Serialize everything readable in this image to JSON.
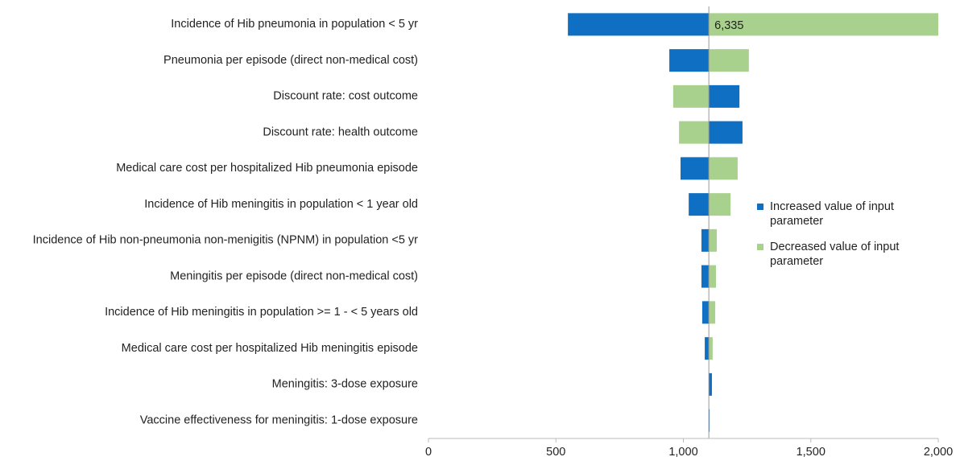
{
  "chart_data": {
    "type": "tornado",
    "categories": [
      "Incidence of Hib pneumonia in population < 5 yr",
      "Pneumonia per episode (direct non-medical cost)",
      "Discount rate: cost outcome",
      "Discount rate: health outcome ",
      "Medical care cost per hospitalized Hib pneumonia episode",
      "Incidence of Hib meningitis in population < 1 year old",
      "Incidence of Hib non-pneumonia non-menigitis (NPNM) in population <5 yr",
      "Meningitis per episode (direct non-medical cost)",
      "Incidence of Hib meningitis in population >= 1 - < 5 years old",
      "Medical care cost per hospitalized Hib meningitis episode",
      "Meningitis: 3-dose exposure",
      "Vaccine effectiveness for meningitis: 1-dose exposure"
    ],
    "baseline": 1100,
    "series": [
      {
        "name": "Increased value of input parameter",
        "color": "#0f6fc3",
        "values": [
          547,
          945,
          1220,
          1232,
          989,
          1021,
          1071,
          1071,
          1074,
          1084,
          1112,
          1103
        ]
      },
      {
        "name": "Decreased value of input parameter",
        "color": "#a9d18e",
        "values": [
          6335,
          1257,
          960,
          983,
          1213,
          1185,
          1131,
          1128,
          1125,
          1115,
          1100,
          1100
        ],
        "value_labels": [
          "6,335",
          null,
          null,
          null,
          null,
          null,
          null,
          null,
          null,
          null,
          null,
          null
        ]
      }
    ],
    "xlim": [
      0,
      2000
    ],
    "xticks": [
      0,
      500,
      {
        "value": 1000,
        "label": "1,000"
      },
      {
        "value": 1500,
        "label": "1,500"
      },
      {
        "value": 2000,
        "label": "2,000"
      }
    ],
    "grid": false,
    "legend": "right"
  }
}
